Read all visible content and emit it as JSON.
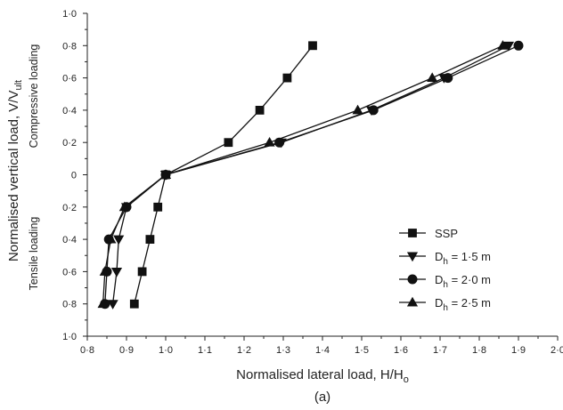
{
  "chart_data": {
    "type": "line",
    "title": "",
    "caption": "(a)",
    "xlabel": "Normalised lateral load, H/H",
    "xlabel_sub": "o",
    "ylabel": "Normalised vertical load, V/V",
    "ylabel_sub": "ult",
    "region_top_label": "Compressive loading",
    "region_bottom_label": "Tensile loading",
    "xlim": [
      0.8,
      2.0
    ],
    "ylim": [
      -1.0,
      1.0
    ],
    "x_ticks": [
      "0·8",
      "0·9",
      "1·0",
      "1·1",
      "1·2",
      "1·3",
      "1·4",
      "1·5",
      "1·6",
      "1·7",
      "1·8",
      "1·9",
      "2·0"
    ],
    "y_ticks": [
      {
        "value": 1.0,
        "label": "1·0"
      },
      {
        "value": 0.8,
        "label": "0·8"
      },
      {
        "value": 0.6,
        "label": "0·6"
      },
      {
        "value": 0.4,
        "label": "0·4"
      },
      {
        "value": 0.2,
        "label": "0·2"
      },
      {
        "value": 0.0,
        "label": "0"
      },
      {
        "value": -0.2,
        "label": "0·2"
      },
      {
        "value": -0.4,
        "label": "0·4"
      },
      {
        "value": -0.6,
        "label": "0·6"
      },
      {
        "value": -0.8,
        "label": "0·8"
      },
      {
        "value": -1.0,
        "label": "1·0"
      }
    ],
    "grid": false,
    "legend_position": "bottom-right",
    "series": [
      {
        "name": "SSP",
        "name_main": "SSP",
        "name_sub": "",
        "name_rest": "",
        "marker": "square",
        "points": [
          {
            "x": 0.92,
            "y": -0.8
          },
          {
            "x": 0.94,
            "y": -0.6
          },
          {
            "x": 0.96,
            "y": -0.4
          },
          {
            "x": 0.98,
            "y": -0.2
          },
          {
            "x": 1.0,
            "y": 0.0
          },
          {
            "x": 1.16,
            "y": 0.2
          },
          {
            "x": 1.24,
            "y": 0.4
          },
          {
            "x": 1.31,
            "y": 0.6
          },
          {
            "x": 1.375,
            "y": 0.8
          }
        ]
      },
      {
        "name": "Dh = 1·5 m",
        "name_main": "D",
        "name_sub": "h",
        "name_rest": " = 1·5 m",
        "marker": "triangle-down",
        "points": [
          {
            "x": 0.865,
            "y": -0.8
          },
          {
            "x": 0.875,
            "y": -0.6
          },
          {
            "x": 0.88,
            "y": -0.4
          },
          {
            "x": 0.9,
            "y": -0.2
          },
          {
            "x": 1.0,
            "y": 0.0
          },
          {
            "x": 1.295,
            "y": 0.2
          },
          {
            "x": 1.525,
            "y": 0.4
          },
          {
            "x": 1.71,
            "y": 0.6
          },
          {
            "x": 1.875,
            "y": 0.8
          }
        ]
      },
      {
        "name": "Dh = 2·0 m",
        "name_main": "D",
        "name_sub": "h",
        "name_rest": " = 2·0 m",
        "marker": "circle",
        "points": [
          {
            "x": 0.845,
            "y": -0.8
          },
          {
            "x": 0.85,
            "y": -0.6
          },
          {
            "x": 0.855,
            "y": -0.4
          },
          {
            "x": 0.9,
            "y": -0.2
          },
          {
            "x": 1.0,
            "y": 0.0
          },
          {
            "x": 1.29,
            "y": 0.2
          },
          {
            "x": 1.53,
            "y": 0.4
          },
          {
            "x": 1.72,
            "y": 0.6
          },
          {
            "x": 1.9,
            "y": 0.8
          }
        ]
      },
      {
        "name": "Dh = 2·5 m",
        "name_main": "D",
        "name_sub": "h",
        "name_rest": " = 2·5 m",
        "marker": "triangle-up",
        "points": [
          {
            "x": 0.84,
            "y": -0.8
          },
          {
            "x": 0.845,
            "y": -0.6
          },
          {
            "x": 0.86,
            "y": -0.4
          },
          {
            "x": 0.895,
            "y": -0.2
          },
          {
            "x": 1.0,
            "y": 0.0
          },
          {
            "x": 1.265,
            "y": 0.2
          },
          {
            "x": 1.49,
            "y": 0.4
          },
          {
            "x": 1.68,
            "y": 0.6
          },
          {
            "x": 1.86,
            "y": 0.8
          }
        ]
      }
    ]
  }
}
